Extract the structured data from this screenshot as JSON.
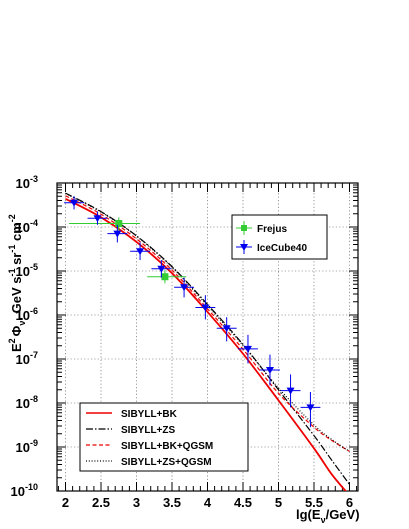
{
  "chart_data": {
    "type": "line",
    "x_axis": {
      "range": [
        1.88,
        6.12
      ],
      "ticks": [
        2,
        2.5,
        3,
        3.5,
        4,
        4.5,
        5,
        5.5,
        6
      ],
      "tick_labels": [
        "2",
        "2.5",
        "3",
        "3.5",
        "4",
        "4.5",
        "5",
        "5.5",
        "6"
      ],
      "title": {
        "pre": "lg(E",
        "sub": "ν",
        "post": "/GeV)"
      }
    },
    "y_axis": {
      "scale": "log",
      "range_log10": [
        -10,
        -3
      ],
      "ticks_log10": [
        -10,
        -9,
        -8,
        -7,
        -6,
        -5,
        -4,
        -3
      ],
      "tick_base": "10",
      "tick_exponents": [
        "-10",
        "-9",
        "-8",
        "-7",
        "-6",
        "-5",
        "-4",
        "-3"
      ],
      "title": {
        "E": "E",
        "E_sup": "2",
        "phi": "Φ",
        "phi_sub": "ν",
        "rest1": ", GeV s",
        "s_sup": "-1",
        "rest2": " sr",
        "sr_sup": "-1",
        "rest3": " cm",
        "cm_sup": "-2"
      }
    },
    "grid": true,
    "curve_legend_position": "bottom-left",
    "points_legend_position": "top-right",
    "curves": [
      {
        "name": "SIBYLL+BK",
        "color": "#ee0000",
        "dash": "solid",
        "x": [
          2.0,
          2.5,
          3.0,
          3.5,
          4.0,
          4.5,
          5.0,
          5.5,
          5.75,
          6.0
        ],
        "log10y": [
          -3.36,
          -3.78,
          -4.34,
          -5.05,
          -5.93,
          -6.88,
          -7.94,
          -9.03,
          -9.62,
          -10.1
        ]
      },
      {
        "name": "SIBYLL+ZS",
        "color": "#000000",
        "dash": "dashdot",
        "x": [
          2.0,
          2.5,
          3.0,
          3.5,
          4.0,
          4.5,
          5.0,
          5.5,
          5.75,
          6.0
        ],
        "log10y": [
          -3.23,
          -3.65,
          -4.2,
          -4.9,
          -5.76,
          -6.67,
          -7.7,
          -8.74,
          -9.3,
          -9.85
        ]
      },
      {
        "name": "SIBYLL+BK+QGSM",
        "color": "#ee0000",
        "dash": "dashed",
        "x": [
          2.0,
          2.5,
          3.0,
          3.5,
          4.0,
          4.5,
          5.0,
          5.5,
          5.75,
          6.0
        ],
        "log10y": [
          -3.29,
          -3.71,
          -4.27,
          -4.98,
          -5.86,
          -6.78,
          -7.78,
          -8.55,
          -8.85,
          -9.1
        ]
      },
      {
        "name": "SIBYLL+ZS+QGSM",
        "color": "#000000",
        "dash": "dotted",
        "x": [
          2.0,
          2.5,
          3.0,
          3.5,
          4.0,
          4.5,
          5.0,
          5.5,
          5.75,
          6.0
        ],
        "log10y": [
          -3.24,
          -3.66,
          -4.21,
          -4.92,
          -5.79,
          -6.69,
          -7.66,
          -8.5,
          -8.83,
          -9.1
        ]
      }
    ],
    "points": [
      {
        "name": "Frejus",
        "color": "#33cc33",
        "marker": "square",
        "x": [
          2.75,
          3.4
        ],
        "log10y": [
          -3.92,
          -5.13
        ],
        "xerr": [
          [
            0.7,
            0.3
          ],
          [
            0.25,
            0.3
          ]
        ],
        "yerr": [
          [
            -4.08,
            -3.78
          ],
          [
            -5.28,
            -4.98
          ]
        ]
      },
      {
        "name": "IceCube40",
        "color": "#0000ee",
        "marker": "triangle-down",
        "x": [
          2.12,
          2.45,
          2.73,
          3.05,
          3.35,
          3.67,
          3.97,
          4.27,
          4.57,
          4.88,
          5.17,
          5.45
        ],
        "log10y": [
          -3.45,
          -3.8,
          -4.15,
          -4.55,
          -4.95,
          -5.37,
          -5.83,
          -6.3,
          -6.77,
          -7.25,
          -7.72,
          -8.1
        ],
        "xerr": [
          0.14,
          0.14,
          0.14,
          0.14,
          0.14,
          0.14,
          0.14,
          0.14,
          0.14,
          0.14,
          0.14,
          0.14
        ],
        "yerr": [
          [
            -3.6,
            -3.3
          ],
          [
            -3.95,
            -3.65
          ],
          [
            -4.35,
            -3.95
          ],
          [
            -4.75,
            -4.35
          ],
          [
            -5.15,
            -4.75
          ],
          [
            -5.6,
            -5.15
          ],
          [
            -6.1,
            -5.55
          ],
          [
            -6.6,
            -6.05
          ],
          [
            -7.1,
            -6.45
          ],
          [
            -7.6,
            -6.9
          ],
          [
            -8.1,
            -7.35
          ],
          [
            -8.55,
            -7.75
          ]
        ]
      }
    ]
  }
}
